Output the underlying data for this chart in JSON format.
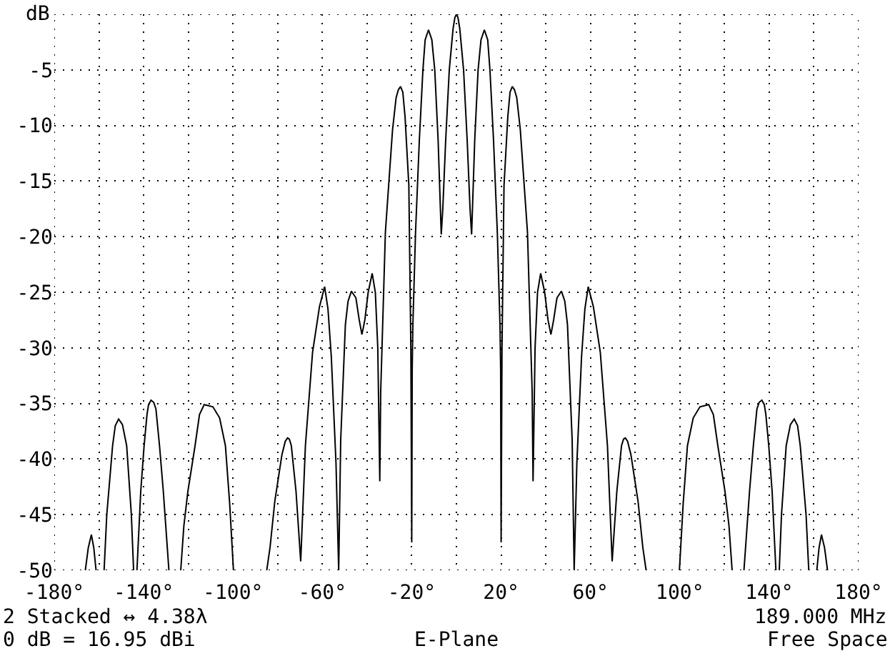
{
  "chart_data": {
    "type": "line",
    "ylabel": "dB",
    "annotations": [
      "2 Stacked ↔ 4.38λ",
      "189.000 MHz",
      "0 dB = 16.95 dBi",
      "E-Plane",
      "Free Space"
    ],
    "x": [
      -166.1,
      -164.8,
      -163.4,
      -162.3,
      -161.3,
      -159.5,
      -157.7,
      -156.5,
      -153.9,
      -152.7,
      -151.2,
      -149.5,
      -147.6,
      -145.5,
      -144.5,
      -143.7,
      -143,
      -141.3,
      -139.8,
      -138.5,
      -137.8,
      -136.7,
      -135.5,
      -134.5,
      -132.9,
      -131.2,
      -128.7,
      -126,
      -123.4,
      -122,
      -120.2,
      -117,
      -115,
      -112.9,
      -109,
      -106,
      -103.4,
      -101.5,
      -99.8,
      -92,
      -84.9,
      -83.4,
      -81.3,
      -78.1,
      -76.6,
      -75.6,
      -74.8,
      -73.9,
      -71.8,
      -69.7,
      -67.6,
      -64.4,
      -61.3,
      -59,
      -57.5,
      -56,
      -53.9,
      -52.7,
      -51.8,
      -49.7,
      -48.5,
      -47,
      -45,
      -43.5,
      -42.3,
      -41,
      -39.5,
      -37.7,
      -36.3,
      -35.2,
      -34.3,
      -33.9,
      -31.8,
      -28.6,
      -27,
      -26,
      -25,
      -24,
      -23,
      -21.3,
      -20.4,
      -20,
      -19.8,
      -19.5,
      -18.3,
      -16.6,
      -15,
      -14,
      -12.5,
      -11,
      -9.7,
      -8.2,
      -6.8,
      -6.1,
      -4.8,
      -3.2,
      -1.5,
      -0.7,
      0,
      0.7,
      1.5,
      3.2,
      4.8,
      6.1,
      6.8,
      8.2,
      9.7,
      11,
      12.5,
      14,
      15,
      16.6,
      18.3,
      19.5,
      19.8,
      20,
      20.4,
      21.3,
      23,
      24,
      25,
      26,
      27,
      28.6,
      31.8,
      33.9,
      34.3,
      35.2,
      36.3,
      37.7,
      39.5,
      41,
      42.3,
      43.5,
      45,
      47,
      48.5,
      49.7,
      51.8,
      52.7,
      53.9,
      56,
      57.5,
      59,
      61.3,
      64.4,
      67.6,
      69.7,
      71.8,
      73.9,
      74.8,
      75.6,
      76.6,
      78.1,
      81.3,
      83.4,
      84.9,
      92,
      99.8,
      101.5,
      103.4,
      106,
      109,
      112.9,
      115,
      117,
      120.2,
      122,
      123.4,
      126,
      128.7,
      131.2,
      132.9,
      134.5,
      135.5,
      136.7,
      137.8,
      138.5,
      139.8,
      141.3,
      143,
      143.7,
      144.5,
      145.5,
      147.6,
      149.5,
      151.2,
      152.7,
      153.9,
      156.5,
      157.7,
      159.5,
      161.3,
      162.3,
      163.4,
      164.8,
      166.1
    ],
    "series": [
      {
        "color": "#000000",
        "values": [
          -50,
          -48,
          -46.8,
          -48,
          -50,
          null,
          -50,
          -45,
          -38.8,
          -37,
          -36.4,
          -36.9,
          -38.8,
          -45,
          -50,
          null,
          -50,
          -42.9,
          -38.8,
          -36,
          -35.1,
          -34.7,
          -34.9,
          -35.5,
          -38.8,
          -42.9,
          -50,
          null,
          -50,
          -46,
          -42.9,
          -38.8,
          -36,
          -35.1,
          -35.3,
          -36.3,
          -38.8,
          -44,
          -50,
          null,
          -50,
          -47.9,
          -43.8,
          -39.6,
          -38.4,
          -38.1,
          -38.2,
          -38.8,
          -42.9,
          -49.2,
          -38.8,
          -30.4,
          -26.3,
          -24.5,
          -26.5,
          -30.8,
          -40.4,
          -50,
          -38.3,
          -27.9,
          -25.8,
          -24.9,
          -25.5,
          -27.5,
          -28.8,
          -27.5,
          -25,
          -23.3,
          -25,
          -30,
          -42,
          -34,
          -19.6,
          -10.4,
          -7.5,
          -6.8,
          -6.5,
          -7,
          -9.2,
          -15.4,
          -30,
          -47.5,
          -32,
          -28,
          -19.6,
          -11.3,
          -5,
          -2.3,
          -1.4,
          -2.3,
          -5,
          -11.3,
          -19.8,
          -17.5,
          -11.3,
          -5,
          -1.3,
          -0.3,
          0,
          -0.3,
          -1.3,
          -5,
          -11.3,
          -17.5,
          -19.8,
          -11.3,
          -5,
          -2.3,
          -1.4,
          -2.3,
          -5,
          -11.3,
          -19.6,
          -28,
          -32,
          -47.5,
          -30,
          -15.4,
          -9.2,
          -7,
          -6.5,
          -6.8,
          -7.5,
          -10.4,
          -19.6,
          -34,
          -42,
          -30,
          -25,
          -23.3,
          -25,
          -27.5,
          -28.8,
          -27.5,
          -25.5,
          -24.9,
          -25.8,
          -27.9,
          -38.3,
          -50,
          -40.4,
          -30.8,
          -26.5,
          -24.5,
          -26.3,
          -30.4,
          -38.8,
          -49.2,
          -42.9,
          -38.8,
          -38.2,
          -38.1,
          -38.4,
          -39.6,
          -43.8,
          -47.9,
          -50,
          null,
          -50,
          -44,
          -38.8,
          -36.3,
          -35.3,
          -35.1,
          -36,
          -38.8,
          -42.9,
          -46,
          -50,
          null,
          -50,
          -42.9,
          -38.8,
          -35.5,
          -34.9,
          -34.7,
          -35.1,
          -36,
          -38.8,
          -42.9,
          -50,
          null,
          -50,
          -45,
          -38.8,
          -36.9,
          -36.4,
          -37,
          -38.8,
          -45,
          -50,
          null,
          -50,
          -48,
          -46.8,
          -48,
          -50
        ]
      }
    ],
    "xlim": [
      -180,
      180
    ],
    "ylim": [
      -50,
      0
    ],
    "xticks": [
      {
        "value": -180,
        "label": "-180°"
      },
      {
        "value": -160,
        "label": null
      },
      {
        "value": -140,
        "label": "-140°"
      },
      {
        "value": -120,
        "label": null
      },
      {
        "value": -100,
        "label": "-100°"
      },
      {
        "value": -80,
        "label": null
      },
      {
        "value": -60,
        "label": "-60°"
      },
      {
        "value": -40,
        "label": null
      },
      {
        "value": -20,
        "label": "-20°"
      },
      {
        "value": 0,
        "label": null
      },
      {
        "value": 20,
        "label": "20°"
      },
      {
        "value": 40,
        "label": null
      },
      {
        "value": 60,
        "label": "60°"
      },
      {
        "value": 80,
        "label": null
      },
      {
        "value": 100,
        "label": "100°"
      },
      {
        "value": 120,
        "label": null
      },
      {
        "value": 140,
        "label": "140°"
      },
      {
        "value": 160,
        "label": null
      },
      {
        "value": 180,
        "label": "180°"
      }
    ],
    "yticks": [
      {
        "value": 0,
        "label": null
      },
      -5,
      -10,
      -15,
      -20,
      -25,
      -30,
      -35,
      -40,
      -45,
      -50
    ],
    "grid": true,
    "line_style": "solid"
  }
}
